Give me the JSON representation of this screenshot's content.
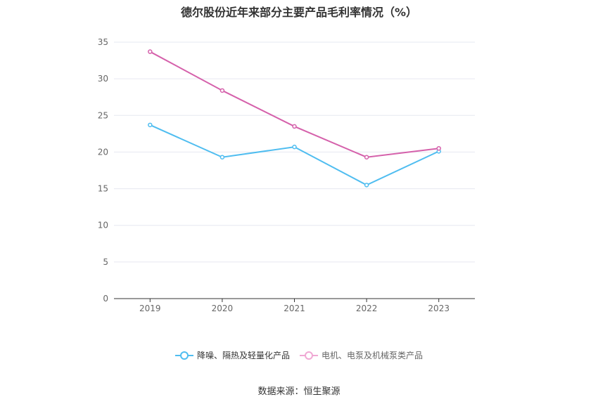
{
  "title": "德尔股份近年来部分主要产品毛利率情况（%）",
  "source": "数据来源：恒生聚源",
  "chart_data": {
    "type": "line",
    "categories": [
      "2019",
      "2020",
      "2021",
      "2022",
      "2023"
    ],
    "ylim": [
      0,
      35
    ],
    "yticks": [
      "0",
      "5",
      "10",
      "15",
      "20",
      "25",
      "30",
      "35"
    ],
    "series": [
      {
        "name": "降噪、隔热及轻量化产品",
        "values": [
          23.7,
          19.3,
          20.7,
          15.5,
          20.1
        ],
        "color": "#4fbdf0"
      },
      {
        "name": "电机、电泵及机械泵类产品",
        "values": [
          33.7,
          28.4,
          23.5,
          19.3,
          20.5
        ],
        "color": "#d561ab"
      }
    ],
    "legend": "bottom-center",
    "grid": true
  }
}
